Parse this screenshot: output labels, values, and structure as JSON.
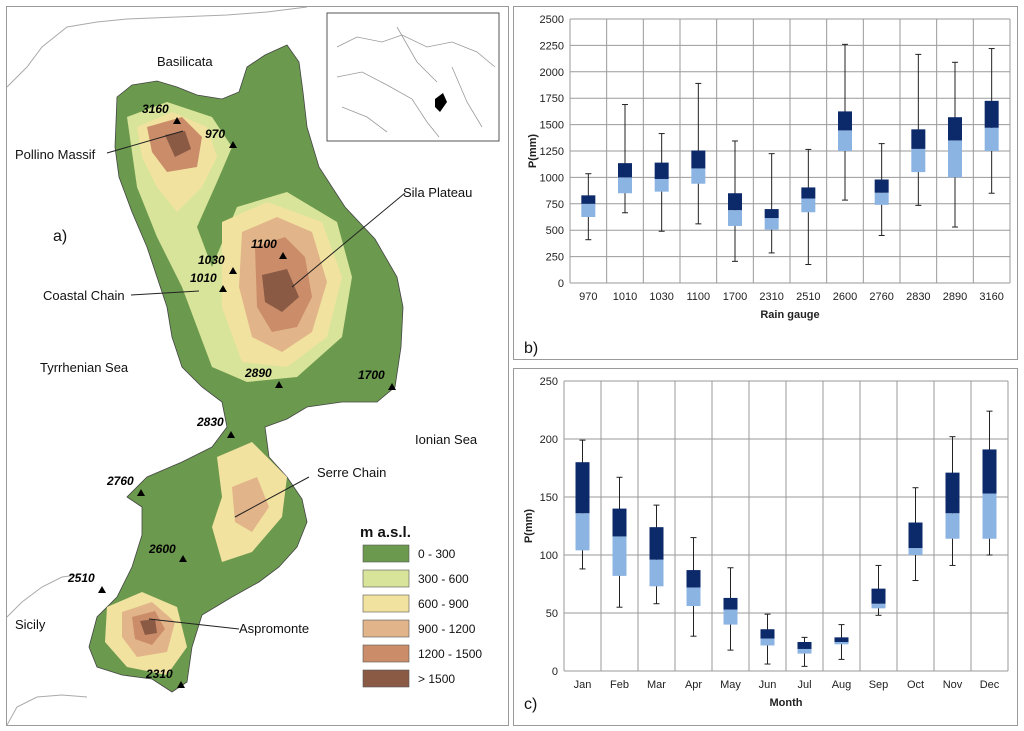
{
  "map": {
    "panel_label": "a)",
    "legend_title": "m a.s.l.",
    "legend": [
      {
        "label": "0 - 300",
        "color": "#6b9a4e"
      },
      {
        "label": "300 - 600",
        "color": "#d8e49a"
      },
      {
        "label": "600 - 900",
        "color": "#f2e2a0"
      },
      {
        "label": "900 - 1200",
        "color": "#e2b489"
      },
      {
        "label": "1200 - 1500",
        "color": "#cb8c69"
      },
      {
        "label": "> 1500",
        "color": "#8a5a44"
      }
    ],
    "places": {
      "basilicata": "Basilicata",
      "pollino": "Pollino Massif",
      "sila": "Sila Plateau",
      "coastal": "Coastal Chain",
      "tyrrhenian": "Tyrrhenian Sea",
      "ionian": "Ionian Sea",
      "serre": "Serre Chain",
      "sicily": "Sicily",
      "aspromonte": "Aspromonte"
    },
    "stations": [
      "3160",
      "970",
      "1100",
      "1030",
      "1010",
      "2890",
      "1700",
      "2830",
      "2760",
      "2600",
      "2510",
      "2310"
    ]
  },
  "chart_data": [
    {
      "type": "boxplot",
      "panel_label": "b)",
      "title": "",
      "xlabel": "Rain gauge",
      "ylabel": "P(mm)",
      "ylim": [
        0,
        2500
      ],
      "yticks": [
        0,
        250,
        500,
        750,
        1000,
        1250,
        1500,
        1750,
        2000,
        2250,
        2500
      ],
      "categories": [
        "970",
        "1010",
        "1030",
        "1100",
        "1700",
        "2310",
        "2510",
        "2600",
        "2760",
        "2830",
        "2890",
        "3160"
      ],
      "min": [
        410,
        665,
        490,
        560,
        205,
        285,
        175,
        785,
        450,
        735,
        530,
        850
      ],
      "q1": [
        625,
        850,
        865,
        940,
        540,
        505,
        670,
        1250,
        740,
        1050,
        1000,
        1250
      ],
      "median": [
        750,
        1000,
        985,
        1085,
        690,
        615,
        800,
        1445,
        855,
        1270,
        1350,
        1470
      ],
      "q3": [
        830,
        1135,
        1140,
        1255,
        850,
        700,
        905,
        1625,
        980,
        1455,
        1570,
        1725
      ],
      "max": [
        1035,
        1690,
        1415,
        1890,
        1345,
        1225,
        1265,
        2260,
        1320,
        2165,
        2090,
        2220
      ],
      "colors": {
        "lower_box": "#8cb4e2",
        "upper_box": "#0c2a6a",
        "whisker": "#222222",
        "grid": "#9a9a9a"
      }
    },
    {
      "type": "boxplot",
      "panel_label": "c)",
      "title": "",
      "xlabel": "Month",
      "ylabel": "P(mm)",
      "ylim": [
        0,
        250
      ],
      "yticks": [
        0,
        50,
        100,
        150,
        200,
        250
      ],
      "categories": [
        "Jan",
        "Feb",
        "Mar",
        "Apr",
        "May",
        "Jun",
        "Jul",
        "Aug",
        "Sep",
        "Oct",
        "Nov",
        "Dec"
      ],
      "min": [
        88,
        55,
        58,
        30,
        18,
        6,
        4,
        10,
        48,
        78,
        91,
        100
      ],
      "q1": [
        104,
        82,
        73,
        56,
        40,
        22,
        15,
        23,
        54,
        100,
        114,
        114
      ],
      "median": [
        136,
        116,
        96,
        72,
        53,
        28,
        19,
        25,
        58,
        106,
        136,
        153
      ],
      "q3": [
        180,
        140,
        124,
        87,
        63,
        36,
        25,
        29,
        71,
        128,
        171,
        191
      ],
      "max": [
        199,
        167,
        143,
        115,
        89,
        49,
        29,
        40,
        91,
        158,
        202,
        224
      ],
      "colors": {
        "lower_box": "#8cb4e2",
        "upper_box": "#0c2a6a",
        "whisker": "#222222",
        "grid": "#9a9a9a"
      }
    }
  ]
}
